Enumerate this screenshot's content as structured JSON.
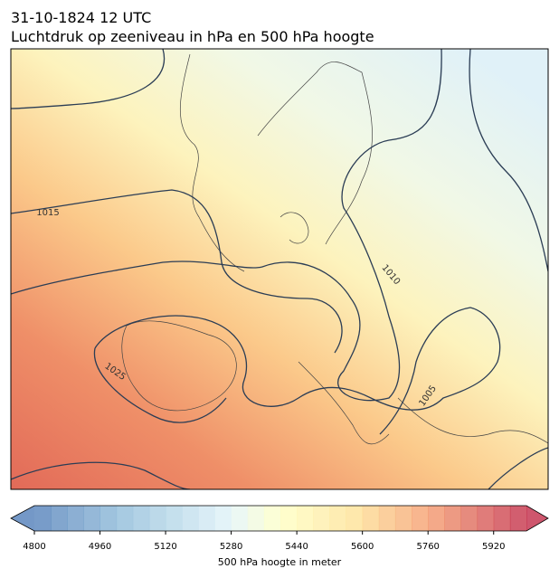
{
  "header": {
    "lines": [
      "31-10-1824 12 UTC",
      "Luchtdruk op zeeniveau in hPa en 500 hPa hoogte"
    ]
  },
  "map": {
    "contour_labels": [
      "1015",
      "1010",
      "1025",
      "1005"
    ]
  },
  "colorbar": {
    "lim": [
      4800,
      6000
    ],
    "ticks": [
      4800,
      4960,
      5120,
      5280,
      5440,
      5600,
      5760,
      5920
    ],
    "label": "500 hPa hoogte in meter"
  }
}
